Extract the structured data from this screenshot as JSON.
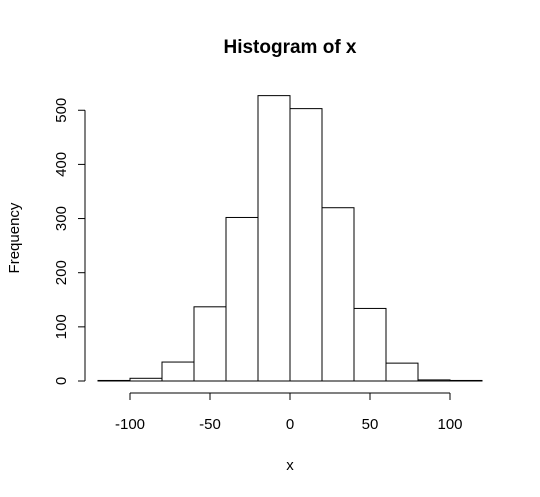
{
  "chart_data": {
    "type": "bar",
    "title": "Histogram of x",
    "xlabel": "x",
    "ylabel": "Frequency",
    "bins": [
      {
        "start": -120,
        "end": -100,
        "count": 1
      },
      {
        "start": -100,
        "end": -80,
        "count": 5
      },
      {
        "start": -80,
        "end": -60,
        "count": 35
      },
      {
        "start": -60,
        "end": -40,
        "count": 137
      },
      {
        "start": -40,
        "end": -20,
        "count": 302
      },
      {
        "start": -20,
        "end": 0,
        "count": 527
      },
      {
        "start": 0,
        "end": 20,
        "count": 503
      },
      {
        "start": 20,
        "end": 40,
        "count": 320
      },
      {
        "start": 40,
        "end": 60,
        "count": 134
      },
      {
        "start": 60,
        "end": 80,
        "count": 33
      },
      {
        "start": 80,
        "end": 100,
        "count": 2
      },
      {
        "start": 100,
        "end": 120,
        "count": 1
      }
    ],
    "xlim": [
      -120,
      120
    ],
    "ylim": [
      0,
      527
    ],
    "x_ticks": [
      "-100",
      "-50",
      "0",
      "50",
      "100"
    ],
    "y_ticks": [
      "0",
      "100",
      "200",
      "300",
      "400",
      "500"
    ],
    "grid": false,
    "legend": "none"
  }
}
